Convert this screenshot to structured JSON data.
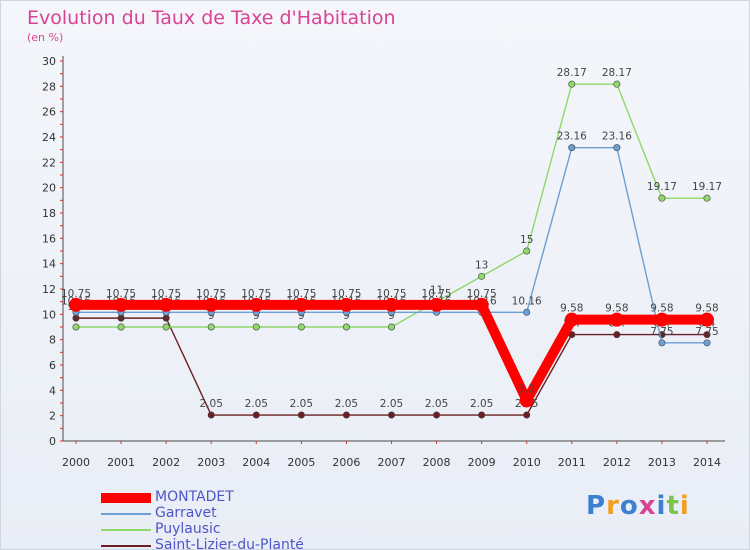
{
  "header": {
    "title": "Evolution du Taux de Taxe d'Habitation",
    "subtitle": "(en %)"
  },
  "logo": {
    "text": "Proxiti"
  },
  "chart_data": {
    "type": "line",
    "title": "Evolution du Taux de Taxe d'Habitation",
    "subtitle": "(en %)",
    "xlabel": "",
    "ylabel": "",
    "ylim": [
      0,
      30
    ],
    "yticks": [
      0,
      2,
      4,
      6,
      8,
      10,
      12,
      14,
      16,
      18,
      20,
      22,
      24,
      26,
      28,
      30
    ],
    "grid": false,
    "legend_position": "bottom-left",
    "categories": [
      "2000",
      "2001",
      "2002",
      "2003",
      "2004",
      "2005",
      "2006",
      "2007",
      "2008",
      "2009",
      "2010",
      "2011",
      "2012",
      "2013",
      "2014"
    ],
    "series": [
      {
        "name": "Saint-Lizier-du-Planté",
        "color": "#6b1f24",
        "values": [
          9.7,
          9.7,
          9.7,
          2.05,
          2.05,
          2.05,
          2.05,
          2.05,
          2.05,
          2.05,
          2.05,
          8.4,
          8.4,
          8.4,
          8.4
        ],
        "labels": [
          "9.7",
          "9.7",
          "9.7",
          "2.05",
          "2.05",
          "2.05",
          "2.05",
          "2.05",
          "2.05",
          "2.05",
          "2.05",
          "8.4",
          "8.4",
          "8.4",
          "8.4"
        ]
      },
      {
        "name": "Puylausic",
        "color": "#8fd86a",
        "values": [
          9,
          9,
          9,
          9,
          9,
          9,
          9,
          9,
          11,
          13,
          15,
          28.17,
          28.17,
          19.17,
          19.17
        ],
        "labels": [
          "9",
          "9",
          "9",
          "9",
          "9",
          "9",
          "9",
          "9",
          "11",
          "13",
          "15",
          "28.17",
          "28.17",
          "19.17",
          "19.17"
        ]
      },
      {
        "name": "Garravet",
        "color": "#6d9fd4",
        "values": [
          10.16,
          10.16,
          10.16,
          10.16,
          10.16,
          10.16,
          10.16,
          10.16,
          10.16,
          10.16,
          10.16,
          23.16,
          23.16,
          7.75,
          7.75
        ],
        "labels": [
          "10.16",
          "10.16",
          "10.16",
          "10.16",
          "10.16",
          "10.16",
          "10.16",
          "10.16",
          "10.16",
          "10.16",
          "10.16",
          "23.16",
          "23.16",
          "7.75",
          "7.75"
        ]
      },
      {
        "name": "MONTADET",
        "color": "#ff0000",
        "values": [
          10.75,
          10.75,
          10.75,
          10.75,
          10.75,
          10.75,
          10.75,
          10.75,
          10.75,
          10.75,
          3.2,
          9.58,
          9.58,
          9.58,
          9.58
        ],
        "labels": [
          "10.75",
          "10.75",
          "10.75",
          "10.75",
          "10.75",
          "10.75",
          "10.75",
          "10.75",
          "10.75",
          "10.75",
          "3.2",
          "9.58",
          "9.58",
          "9.58",
          "9.58"
        ]
      }
    ]
  },
  "legend": {
    "items": [
      {
        "label": "MONTADET",
        "color": "#ff0000",
        "thick": true
      },
      {
        "label": "Garravet",
        "color": "#6d9fd4",
        "thick": false
      },
      {
        "label": "Puylausic",
        "color": "#8fd86a",
        "thick": false
      },
      {
        "label": "Saint-Lizier-du-Planté",
        "color": "#6b1f24",
        "thick": false
      }
    ]
  }
}
